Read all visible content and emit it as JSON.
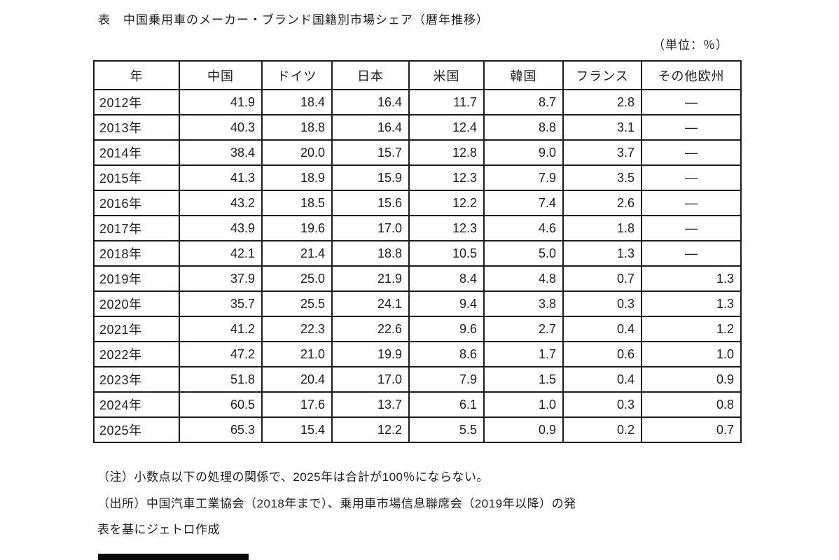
{
  "page": {
    "title": "表　中国乗用車のメーカー・ブランド国籍別市場シェア（暦年推移）",
    "unit_label": "（単位：％）",
    "notes": [
      "（注）小数点以下の処理の関係で、2025年は合計が100％にならない。",
      "（出所）中国汽車工業協会（2018年まで）、乗用車市場信息聯席会（2019年以降）の発",
      "表を基にジェトロ作成"
    ]
  },
  "chart_data": {
    "type": "table",
    "title": "中国乗用車のメーカー・ブランド国籍別市場シェア（暦年推移）",
    "unit": "％",
    "no_data_symbol": "―",
    "columns": [
      "年",
      "中国",
      "ドイツ",
      "日本",
      "米国",
      "韓国",
      "フランス",
      "その他欧州"
    ],
    "rows": [
      {
        "year": "2012年",
        "values": [
          "41.9",
          "18.4",
          "16.4",
          "11.7",
          "8.7",
          "2.8",
          "―"
        ]
      },
      {
        "year": "2013年",
        "values": [
          "40.3",
          "18.8",
          "16.4",
          "12.4",
          "8.8",
          "3.1",
          "―"
        ]
      },
      {
        "year": "2014年",
        "values": [
          "38.4",
          "20.0",
          "15.7",
          "12.8",
          "9.0",
          "3.7",
          "―"
        ]
      },
      {
        "year": "2015年",
        "values": [
          "41.3",
          "18.9",
          "15.9",
          "12.3",
          "7.9",
          "3.5",
          "―"
        ]
      },
      {
        "year": "2016年",
        "values": [
          "43.2",
          "18.5",
          "15.6",
          "12.2",
          "7.4",
          "2.6",
          "―"
        ]
      },
      {
        "year": "2017年",
        "values": [
          "43.9",
          "19.6",
          "17.0",
          "12.3",
          "4.6",
          "1.8",
          "―"
        ]
      },
      {
        "year": "2018年",
        "values": [
          "42.1",
          "21.4",
          "18.8",
          "10.5",
          "5.0",
          "1.3",
          "―"
        ]
      },
      {
        "year": "2019年",
        "values": [
          "37.9",
          "25.0",
          "21.9",
          "8.4",
          "4.8",
          "0.7",
          "1.3"
        ]
      },
      {
        "year": "2020年",
        "values": [
          "35.7",
          "25.5",
          "24.1",
          "9.4",
          "3.8",
          "0.3",
          "1.3"
        ]
      },
      {
        "year": "2021年",
        "values": [
          "41.2",
          "22.3",
          "22.6",
          "9.6",
          "2.7",
          "0.4",
          "1.2"
        ]
      },
      {
        "year": "2022年",
        "values": [
          "47.2",
          "21.0",
          "19.9",
          "8.6",
          "1.7",
          "0.6",
          "1.0"
        ]
      },
      {
        "year": "2023年",
        "values": [
          "51.8",
          "20.4",
          "17.0",
          "7.9",
          "1.5",
          "0.4",
          "0.9"
        ]
      },
      {
        "year": "2024年",
        "values": [
          "60.5",
          "17.6",
          "13.7",
          "6.1",
          "1.0",
          "0.3",
          "0.8"
        ]
      },
      {
        "year": "2025年",
        "values": [
          "65.3",
          "15.4",
          "12.2",
          "5.5",
          "0.9",
          "0.2",
          "0.7"
        ]
      }
    ],
    "layout": {
      "grid": true,
      "year_column_align": "left",
      "value_align": "right",
      "no_data_align": "center",
      "border_color": "#1c1c1c",
      "background": "#ffffff"
    }
  }
}
